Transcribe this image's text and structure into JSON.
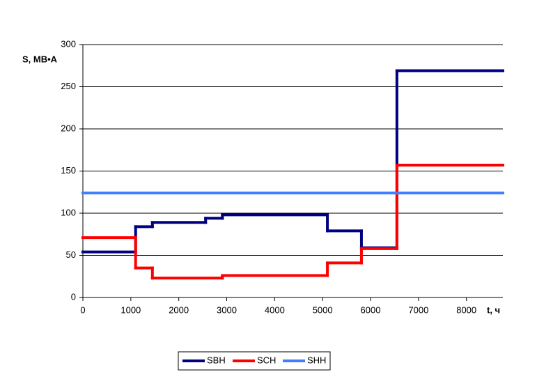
{
  "chart_data": {
    "type": "step",
    "ylabel": "S, МВ•А",
    "xlabel": "t, ч",
    "xlim": [
      0,
      8760
    ],
    "ylim": [
      0,
      300
    ],
    "xticks": [
      0,
      1000,
      2000,
      3000,
      4000,
      5000,
      6000,
      7000,
      8000
    ],
    "yticks": [
      0,
      50,
      100,
      150,
      200,
      250,
      300
    ],
    "grid": true,
    "legend": "bottom",
    "series": [
      {
        "name": "SBH",
        "color": "#000080",
        "x": [
          0,
          1100,
          1450,
          2560,
          2910,
          5100,
          5810,
          6550
        ],
        "values": [
          54,
          84,
          89,
          94,
          98,
          79,
          59,
          269
        ]
      },
      {
        "name": "SCH",
        "color": "#ff0000",
        "x": [
          0,
          1100,
          1450,
          2910,
          5100,
          5810,
          6550
        ],
        "values": [
          71,
          35,
          23,
          26,
          41,
          58,
          157
        ]
      },
      {
        "name": "SHH",
        "color": "#3f7fff",
        "x": [
          0
        ],
        "values": [
          124
        ]
      }
    ]
  }
}
